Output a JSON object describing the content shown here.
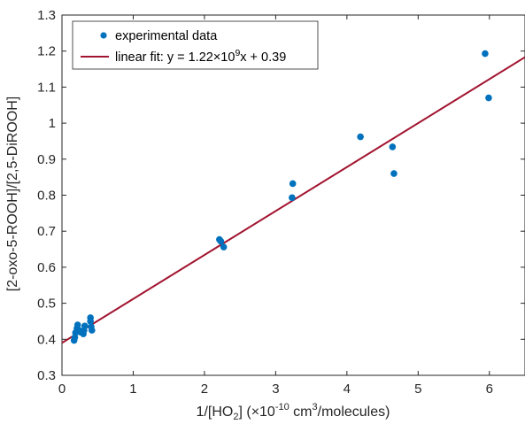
{
  "chart_data": {
    "type": "scatter",
    "xlabel": {
      "prefix": "1/[HO",
      "sub": "2",
      "middle": "] (×10",
      "exp": "-10",
      "middle2": " cm",
      "exp2": "3",
      "suffix": "/molecules)"
    },
    "ylabel": "[2-oxo-5-ROOH]/[2,5-DiROOH]",
    "xlim": [
      0,
      6.5
    ],
    "ylim": [
      0.3,
      1.3
    ],
    "xticks": [
      0,
      1,
      2,
      3,
      4,
      5,
      6
    ],
    "yticks": [
      0.3,
      0.4,
      0.5,
      0.6,
      0.7,
      0.8,
      0.9,
      1,
      1.1,
      1.2,
      1.3
    ],
    "legend_position": "top-left",
    "grid": false,
    "series": [
      {
        "name": "experimental data",
        "kind": "scatter",
        "color": "#0072BD",
        "x": [
          0.17,
          0.18,
          0.19,
          0.21,
          0.22,
          0.24,
          0.26,
          0.3,
          0.31,
          0.32,
          0.4,
          0.4,
          0.41,
          0.42,
          2.21,
          2.23,
          2.27,
          3.23,
          3.24,
          4.19,
          4.64,
          4.66,
          5.94,
          5.99
        ],
        "y": [
          0.397,
          0.405,
          0.418,
          0.43,
          0.44,
          0.425,
          0.42,
          0.415,
          0.425,
          0.437,
          0.46,
          0.45,
          0.435,
          0.425,
          0.677,
          0.672,
          0.656,
          0.793,
          0.832,
          0.962,
          0.934,
          0.86,
          1.193,
          1.07
        ]
      },
      {
        "name": {
          "prefix": "linear fit: y = 1.22",
          "times": "×",
          "base": "10",
          "exp": "9",
          "suffix": "x + 0.39"
        },
        "kind": "line",
        "color": "#A2142F",
        "slope": 0.122,
        "intercept": 0.39,
        "x": [
          0,
          6.5
        ]
      }
    ]
  }
}
